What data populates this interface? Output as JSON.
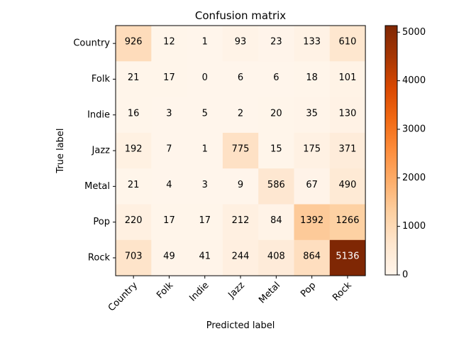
{
  "chart_data": {
    "type": "heatmap",
    "title": "Confusion matrix",
    "xlabel": "Predicted label",
    "ylabel": "True label",
    "x_categories": [
      "Country",
      "Folk",
      "Indie",
      "Jazz",
      "Metal",
      "Pop",
      "Rock"
    ],
    "y_categories": [
      "Country",
      "Folk",
      "Indie",
      "Jazz",
      "Metal",
      "Pop",
      "Rock"
    ],
    "values": [
      [
        926,
        12,
        1,
        93,
        23,
        133,
        610
      ],
      [
        21,
        17,
        0,
        6,
        6,
        18,
        101
      ],
      [
        16,
        3,
        5,
        2,
        20,
        35,
        130
      ],
      [
        192,
        7,
        1,
        775,
        15,
        175,
        371
      ],
      [
        21,
        4,
        3,
        9,
        586,
        67,
        490
      ],
      [
        220,
        17,
        17,
        212,
        84,
        1392,
        1266
      ],
      [
        703,
        49,
        41,
        244,
        408,
        864,
        5136
      ]
    ],
    "colormap": "Oranges",
    "colorbar": {
      "range": [
        0,
        5136
      ],
      "ticks": [
        0,
        1000,
        2000,
        3000,
        4000,
        5000
      ]
    }
  }
}
